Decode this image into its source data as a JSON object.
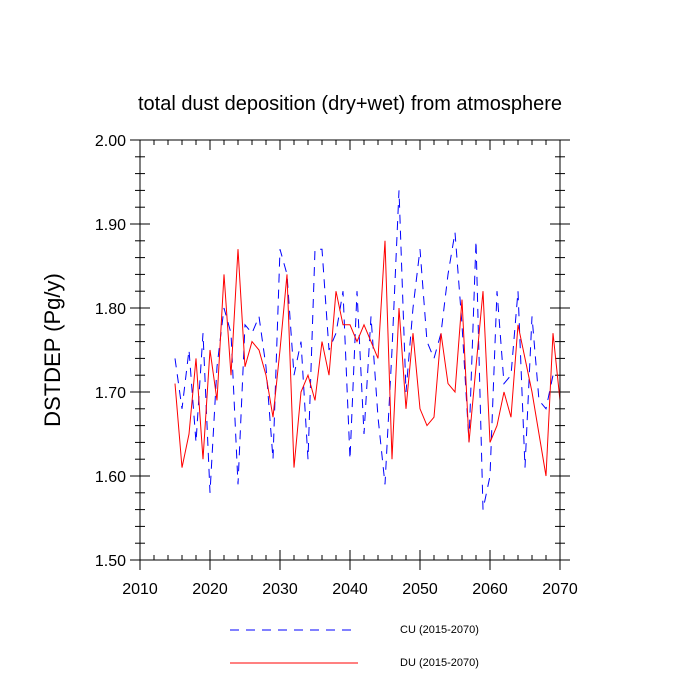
{
  "chart_data": {
    "type": "line",
    "title": "total dust deposition (dry+wet) from atmosphere",
    "xlabel": "",
    "ylabel": "DSTDEP  (Pg/y)",
    "xlim": [
      2010,
      2070
    ],
    "ylim": [
      1.5,
      2.0
    ],
    "x_ticks": [
      2010,
      2020,
      2030,
      2040,
      2050,
      2060,
      2070
    ],
    "x_tick_labels": [
      "2010",
      "2020",
      "2030",
      "2040",
      "2050",
      "2060",
      "2070"
    ],
    "y_ticks": [
      1.5,
      1.6,
      1.7,
      1.8,
      1.9,
      2.0
    ],
    "y_tick_labels": [
      "1.50",
      "1.60",
      "1.70",
      "1.80",
      "1.90",
      "2.00"
    ],
    "legend_position": "bottom",
    "x": [
      2015,
      2016,
      2017,
      2018,
      2019,
      2020,
      2021,
      2022,
      2023,
      2024,
      2025,
      2026,
      2027,
      2028,
      2029,
      2030,
      2031,
      2032,
      2033,
      2034,
      2035,
      2036,
      2037,
      2038,
      2039,
      2040,
      2041,
      2042,
      2043,
      2044,
      2045,
      2046,
      2047,
      2048,
      2049,
      2050,
      2051,
      2052,
      2053,
      2054,
      2055,
      2056,
      2057,
      2058,
      2059,
      2060,
      2061,
      2062,
      2063,
      2064,
      2065,
      2066,
      2067,
      2068,
      2069,
      2070
    ],
    "series": [
      {
        "name": "CU (2015-2070)",
        "color": "#0000ff",
        "style": "dashed",
        "values": [
          1.74,
          1.68,
          1.75,
          1.64,
          1.77,
          1.58,
          1.73,
          1.8,
          1.77,
          1.59,
          1.78,
          1.77,
          1.79,
          1.73,
          1.62,
          1.87,
          1.84,
          1.72,
          1.76,
          1.62,
          1.87,
          1.87,
          1.75,
          1.77,
          1.82,
          1.62,
          1.82,
          1.65,
          1.79,
          1.67,
          1.59,
          1.75,
          1.94,
          1.7,
          1.8,
          1.87,
          1.76,
          1.74,
          1.77,
          1.84,
          1.89,
          1.78,
          1.64,
          1.88,
          1.56,
          1.6,
          1.82,
          1.71,
          1.72,
          1.82,
          1.61,
          1.79,
          1.69,
          1.68,
          1.72,
          1.72
        ]
      },
      {
        "name": "DU (2015-2070)",
        "color": "#ff0000",
        "style": "solid",
        "values": [
          1.71,
          1.61,
          1.65,
          1.74,
          1.62,
          1.75,
          1.69,
          1.84,
          1.72,
          1.87,
          1.73,
          1.76,
          1.75,
          1.72,
          1.67,
          1.75,
          1.84,
          1.61,
          1.7,
          1.72,
          1.69,
          1.76,
          1.72,
          1.82,
          1.78,
          1.78,
          1.76,
          1.78,
          1.76,
          1.74,
          1.88,
          1.62,
          1.8,
          1.68,
          1.77,
          1.68,
          1.66,
          1.67,
          1.77,
          1.71,
          1.7,
          1.81,
          1.64,
          1.73,
          1.82,
          1.64,
          1.66,
          1.7,
          1.67,
          1.78,
          1.74,
          1.7,
          1.65,
          1.6,
          1.77,
          1.69
        ]
      }
    ]
  }
}
